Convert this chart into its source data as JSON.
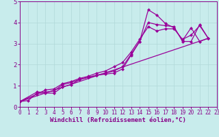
{
  "xlabel": "Windchill (Refroidissement éolien,°C)",
  "background_color": "#c8ecec",
  "line_color": "#990099",
  "grid_color": "#b0d8d8",
  "axis_color": "#880088",
  "xlim": [
    0,
    23
  ],
  "ylim": [
    0,
    5
  ],
  "xticks": [
    0,
    1,
    2,
    3,
    4,
    5,
    6,
    7,
    8,
    9,
    10,
    11,
    12,
    13,
    14,
    15,
    16,
    17,
    18,
    19,
    20,
    21,
    22,
    23
  ],
  "yticks": [
    0,
    1,
    2,
    3,
    4,
    5
  ],
  "series": [
    [
      [
        0,
        1,
        2,
        3,
        4,
        5,
        6,
        7,
        8,
        9,
        10,
        11,
        12,
        13,
        14,
        15,
        16,
        17,
        18,
        19,
        20,
        21,
        22
      ],
      [
        0.25,
        0.3,
        0.65,
        0.65,
        0.65,
        0.95,
        1.05,
        1.3,
        1.4,
        1.5,
        1.55,
        1.6,
        1.8,
        2.45,
        3.1,
        4.6,
        4.35,
        3.95,
        3.75,
        3.15,
        3.75,
        3.1,
        3.25
      ]
    ],
    [
      [
        0,
        2,
        3,
        4,
        5,
        6,
        7,
        8,
        9,
        10,
        11,
        12,
        13,
        14,
        15,
        16,
        17,
        18,
        19,
        20,
        21,
        22
      ],
      [
        0.25,
        0.7,
        0.7,
        0.75,
        1.05,
        1.15,
        1.3,
        1.4,
        1.5,
        1.6,
        1.7,
        1.9,
        2.5,
        3.1,
        4.0,
        3.9,
        3.85,
        3.8,
        3.1,
        3.1,
        3.9,
        3.25
      ]
    ],
    [
      [
        0,
        2,
        3,
        4,
        5,
        6,
        7,
        8,
        9,
        10,
        11,
        12,
        13,
        14,
        15,
        16,
        17,
        18,
        19,
        20,
        21,
        22
      ],
      [
        0.25,
        0.6,
        0.8,
        0.85,
        1.1,
        1.2,
        1.35,
        1.45,
        1.6,
        1.7,
        1.9,
        2.1,
        2.6,
        3.2,
        3.8,
        3.6,
        3.7,
        3.7,
        3.2,
        3.4,
        3.85,
        3.25
      ]
    ],
    [
      [
        0,
        22
      ],
      [
        0.25,
        3.25
      ]
    ]
  ],
  "marker_series": [
    0,
    1,
    2
  ],
  "fontsize_tick": 5.5,
  "fontsize_xlabel": 6.5,
  "linewidth": 0.9,
  "markersize": 2.5
}
